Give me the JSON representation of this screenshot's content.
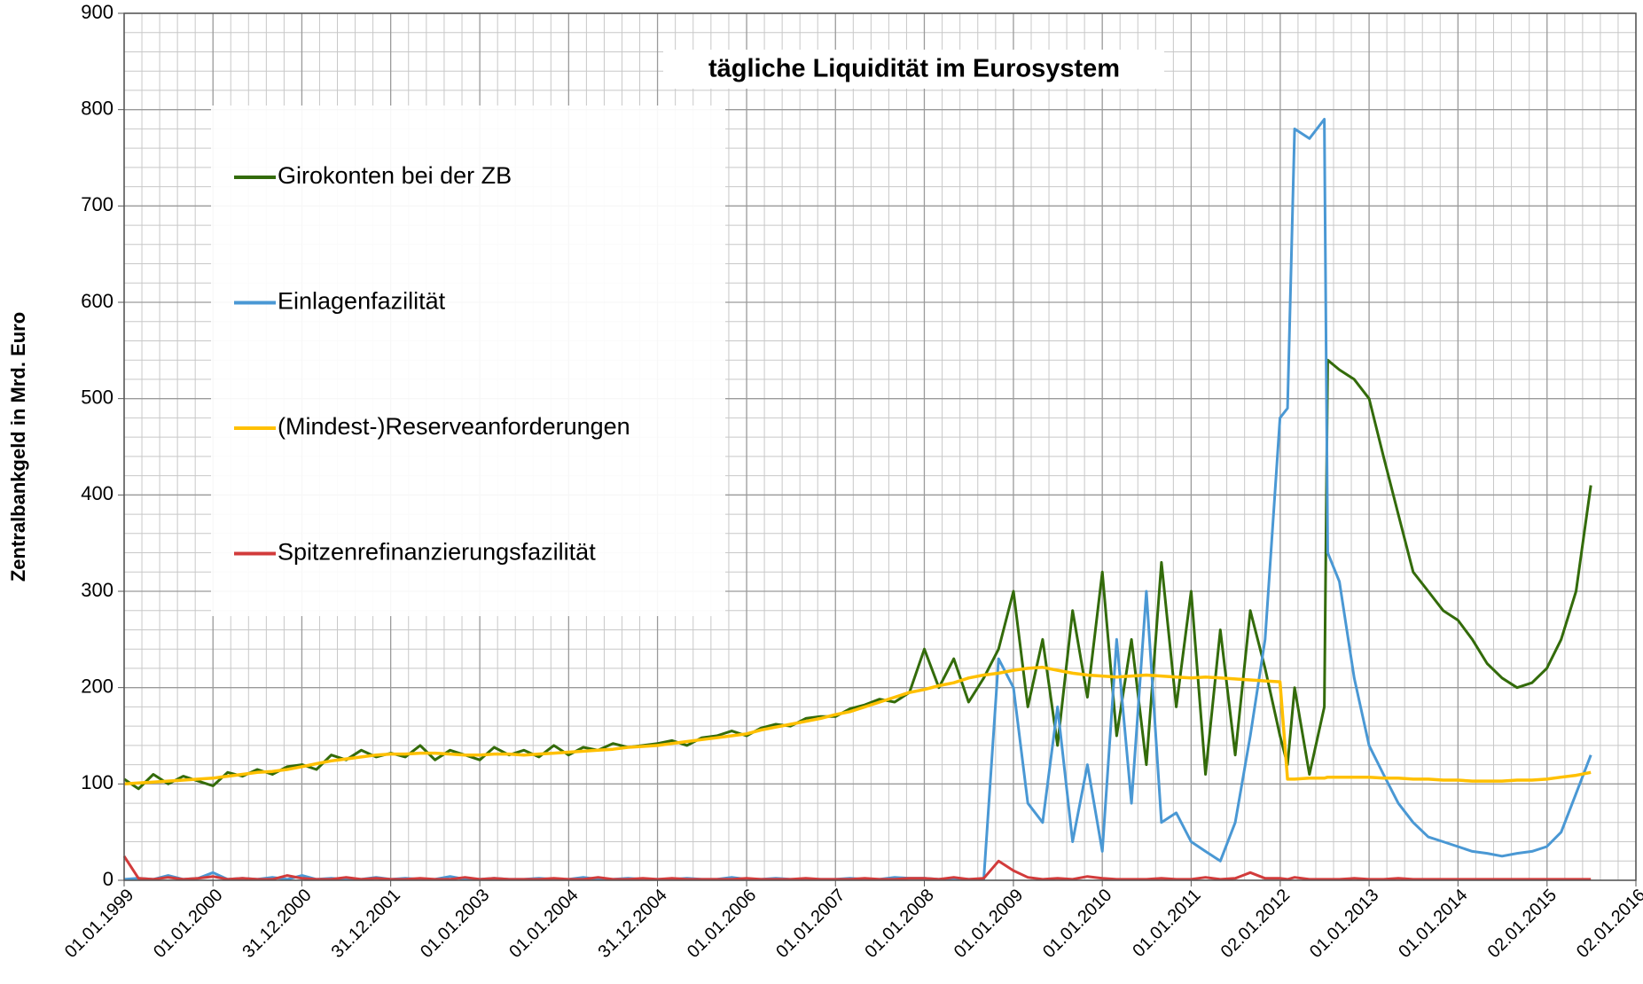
{
  "chart_data": {
    "type": "line",
    "title": "tägliche Liquidität im Eurosystem",
    "y_label": "Zentralbankgeld in Mrd. Euro",
    "x": [
      "1999-01-01",
      "1999-03-01",
      "1999-05-01",
      "1999-07-01",
      "1999-09-01",
      "1999-11-01",
      "2000-01-01",
      "2000-03-01",
      "2000-05-01",
      "2000-07-01",
      "2000-09-01",
      "2000-11-01",
      "2001-01-01",
      "2001-03-01",
      "2001-05-01",
      "2001-07-01",
      "2001-09-01",
      "2001-11-01",
      "2002-01-01",
      "2002-03-01",
      "2002-05-01",
      "2002-07-01",
      "2002-09-01",
      "2002-11-01",
      "2003-01-01",
      "2003-03-01",
      "2003-05-01",
      "2003-07-01",
      "2003-09-01",
      "2003-11-01",
      "2004-01-01",
      "2004-03-01",
      "2004-05-01",
      "2004-07-01",
      "2004-09-01",
      "2004-11-01",
      "2005-01-01",
      "2005-03-01",
      "2005-05-01",
      "2005-07-01",
      "2005-09-01",
      "2005-11-01",
      "2006-01-01",
      "2006-03-01",
      "2006-05-01",
      "2006-07-01",
      "2006-09-01",
      "2006-11-01",
      "2007-01-01",
      "2007-03-01",
      "2007-05-01",
      "2007-07-01",
      "2007-09-01",
      "2007-11-01",
      "2008-01-01",
      "2008-03-01",
      "2008-05-01",
      "2008-07-01",
      "2008-09-01",
      "2008-11-01",
      "2009-01-01",
      "2009-03-01",
      "2009-05-01",
      "2009-07-01",
      "2009-09-01",
      "2009-11-01",
      "2010-01-01",
      "2010-03-01",
      "2010-05-01",
      "2010-07-01",
      "2010-09-01",
      "2010-11-01",
      "2011-01-01",
      "2011-03-01",
      "2011-05-01",
      "2011-07-01",
      "2011-09-01",
      "2011-11-01",
      "2012-01-01",
      "2012-02-01",
      "2012-03-01",
      "2012-05-01",
      "2012-07-01",
      "2012-07-15",
      "2012-09-01",
      "2012-11-01",
      "2013-01-01",
      "2013-03-01",
      "2013-05-01",
      "2013-07-01",
      "2013-09-01",
      "2013-11-01",
      "2014-01-01",
      "2014-03-01",
      "2014-05-01",
      "2014-07-01",
      "2014-09-01",
      "2014-11-01",
      "2015-01-01",
      "2015-03-01",
      "2015-05-01",
      "2015-07-01"
    ],
    "series": [
      {
        "name": "Girokonten bei der ZB",
        "color": "#336b0a",
        "values": [
          105,
          95,
          110,
          100,
          108,
          103,
          98,
          112,
          108,
          115,
          110,
          118,
          120,
          115,
          130,
          125,
          135,
          128,
          132,
          128,
          140,
          125,
          135,
          130,
          125,
          138,
          130,
          135,
          128,
          140,
          130,
          138,
          135,
          142,
          138,
          140,
          142,
          145,
          140,
          148,
          150,
          155,
          150,
          158,
          162,
          160,
          168,
          170,
          170,
          178,
          182,
          188,
          185,
          195,
          240,
          200,
          230,
          185,
          210,
          240,
          300,
          180,
          250,
          140,
          280,
          190,
          320,
          150,
          250,
          120,
          330,
          180,
          300,
          110,
          260,
          130,
          280,
          220,
          150,
          120,
          200,
          110,
          180,
          540,
          530,
          520,
          500,
          440,
          380,
          320,
          300,
          280,
          270,
          250,
          225,
          210,
          200,
          205,
          220,
          250,
          300,
          410
        ]
      },
      {
        "name": "Einlagenfazilität",
        "color": "#4a98d4",
        "values": [
          1,
          2,
          1,
          5,
          1,
          2,
          8,
          1,
          2,
          1,
          3,
          1,
          5,
          1,
          2,
          1,
          1,
          3,
          1,
          2,
          1,
          1,
          4,
          1,
          1,
          2,
          1,
          1,
          2,
          1,
          1,
          3,
          1,
          1,
          2,
          1,
          1,
          1,
          2,
          1,
          1,
          3,
          1,
          1,
          2,
          1,
          1,
          1,
          1,
          2,
          1,
          1,
          3,
          2,
          2,
          1,
          2,
          1,
          1,
          230,
          200,
          80,
          60,
          180,
          40,
          120,
          30,
          250,
          80,
          300,
          60,
          70,
          40,
          30,
          20,
          60,
          150,
          250,
          480,
          490,
          780,
          770,
          790,
          340,
          310,
          210,
          140,
          110,
          80,
          60,
          45,
          40,
          35,
          30,
          28,
          25,
          28,
          30,
          35,
          50,
          90,
          130
        ]
      },
      {
        "name": "(Mindest-)Reserveanforderungen",
        "color": "#ffc000",
        "values": [
          100,
          101,
          102,
          103,
          104,
          105,
          106,
          108,
          110,
          112,
          113,
          115,
          118,
          121,
          124,
          126,
          128,
          130,
          131,
          131,
          132,
          132,
          131,
          130,
          130,
          131,
          131,
          130,
          131,
          132,
          133,
          134,
          135,
          136,
          138,
          139,
          140,
          142,
          144,
          146,
          148,
          150,
          152,
          156,
          159,
          162,
          165,
          168,
          172,
          175,
          180,
          185,
          190,
          195,
          198,
          202,
          205,
          210,
          213,
          215,
          218,
          220,
          221,
          218,
          215,
          213,
          212,
          211,
          212,
          213,
          212,
          211,
          210,
          211,
          210,
          209,
          208,
          207,
          206,
          105,
          105,
          106,
          106,
          107,
          107,
          107,
          107,
          106,
          106,
          105,
          105,
          104,
          104,
          103,
          103,
          103,
          104,
          104,
          105,
          107,
          109,
          112
        ]
      },
      {
        "name": "Spitzenrefinanzierungsfazilität",
        "color": "#d23b3b",
        "values": [
          25,
          2,
          1,
          3,
          1,
          2,
          4,
          1,
          2,
          1,
          1,
          5,
          2,
          1,
          1,
          3,
          1,
          2,
          1,
          1,
          2,
          1,
          1,
          3,
          1,
          2,
          1,
          1,
          1,
          2,
          1,
          1,
          3,
          1,
          1,
          2,
          1,
          2,
          1,
          1,
          1,
          1,
          2,
          1,
          1,
          1,
          2,
          1,
          1,
          1,
          2,
          1,
          1,
          2,
          2,
          1,
          3,
          1,
          2,
          20,
          10,
          3,
          1,
          2,
          1,
          4,
          2,
          1,
          1,
          1,
          2,
          1,
          1,
          3,
          1,
          2,
          8,
          2,
          2,
          1,
          3,
          1,
          1,
          1,
          1,
          2,
          1,
          1,
          2,
          1,
          1,
          1,
          1,
          1,
          1,
          1,
          1,
          1,
          1,
          1,
          1,
          1
        ]
      }
    ],
    "xlim": [
      "1999-01-01",
      "2016-01-02"
    ],
    "xticks": [
      {
        "value": "1999-01-01",
        "label": "01.01.1999"
      },
      {
        "value": "2000-01-01",
        "label": "01.01.2000"
      },
      {
        "value": "2000-12-31",
        "label": "31.12.2000"
      },
      {
        "value": "2001-12-31",
        "label": "31.12.2001"
      },
      {
        "value": "2003-01-01",
        "label": "01.01.2003"
      },
      {
        "value": "2004-01-01",
        "label": "01.01.2004"
      },
      {
        "value": "2004-12-31",
        "label": "31.12.2004"
      },
      {
        "value": "2006-01-01",
        "label": "01.01.2006"
      },
      {
        "value": "2007-01-01",
        "label": "01.01.2007"
      },
      {
        "value": "2008-01-01",
        "label": "01.01.2008"
      },
      {
        "value": "2009-01-01",
        "label": "01.01.2009"
      },
      {
        "value": "2010-01-01",
        "label": "01.01.2010"
      },
      {
        "value": "2011-01-01",
        "label": "01.01.2011"
      },
      {
        "value": "2012-01-02",
        "label": "02.01.2012"
      },
      {
        "value": "2013-01-01",
        "label": "01.01.2013"
      },
      {
        "value": "2014-01-01",
        "label": "01.01.2014"
      },
      {
        "value": "2015-01-02",
        "label": "02.01.2015"
      },
      {
        "value": "2016-01-02",
        "label": "02.01.2016"
      }
    ],
    "ylim": [
      0,
      900
    ],
    "yticks": [
      0,
      100,
      200,
      300,
      400,
      500,
      600,
      700,
      800,
      900
    ],
    "grid": true,
    "legend": "upper left"
  }
}
